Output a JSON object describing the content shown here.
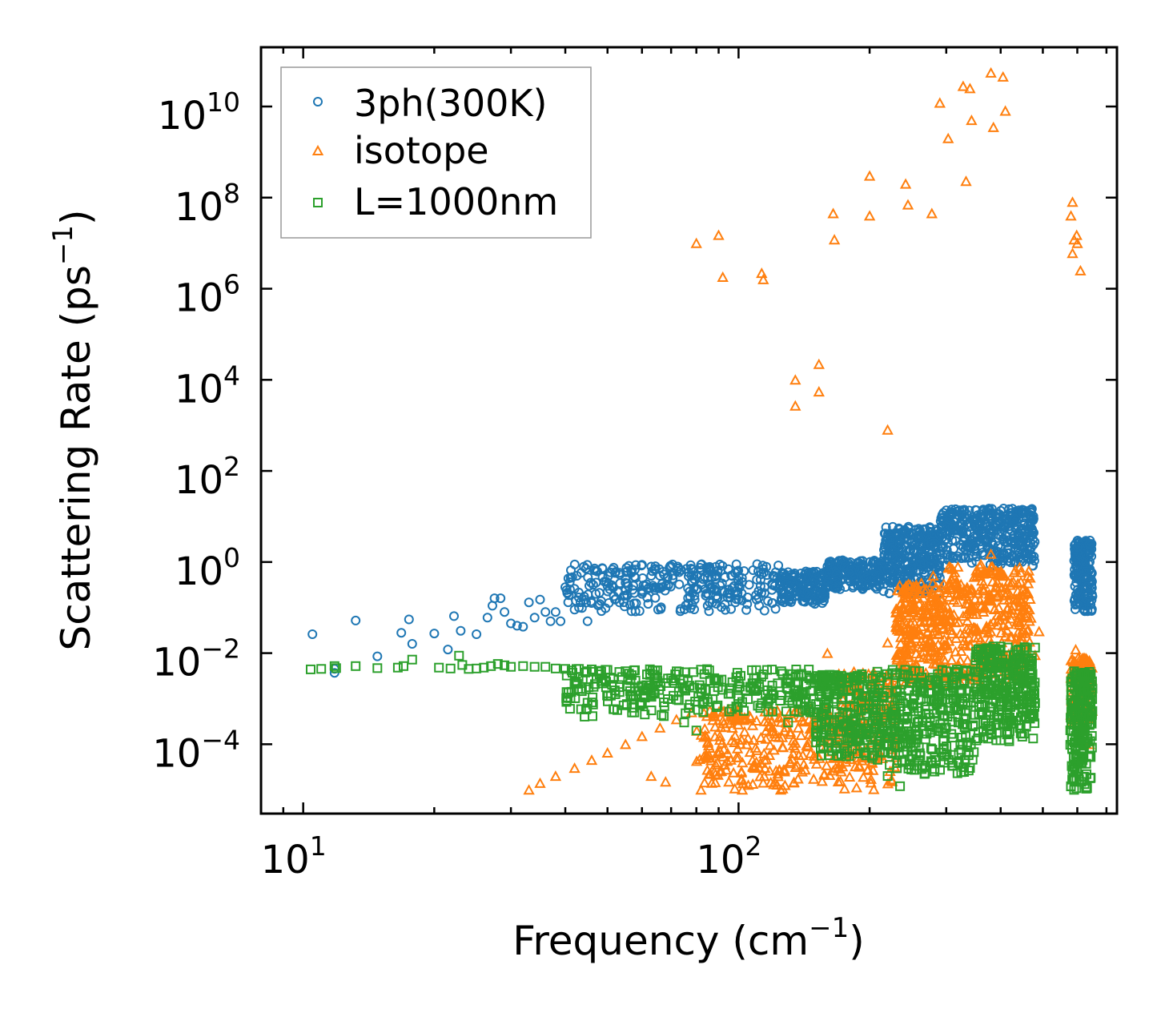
{
  "chart_data": {
    "type": "scatter",
    "title": "",
    "xlabel": "Frequency (cm⁻¹)",
    "xlabel_base": "Frequency (cm",
    "xlabel_sup": "−1",
    "xlabel_close": ")",
    "ylabel": "Scattering Rate (ps⁻¹)",
    "ylabel_base": "Scattering Rate (ps",
    "ylabel_sup": "−1",
    "ylabel_close": ")",
    "xscale": "log",
    "yscale": "log",
    "xlim": [
      8.0,
      740.0
    ],
    "ylim": [
      3e-06,
      200000000000.0
    ],
    "x_ticks": [
      {
        "value": 10,
        "base": "10",
        "exp": "1"
      },
      {
        "value": 100,
        "base": "10",
        "exp": "2"
      }
    ],
    "y_ticks": [
      {
        "value": 0.0001,
        "base": "10",
        "exp": "−4"
      },
      {
        "value": 0.01,
        "base": "10",
        "exp": "−2"
      },
      {
        "value": 1.0,
        "base": "10",
        "exp": "0"
      },
      {
        "value": 100.0,
        "base": "10",
        "exp": "2"
      },
      {
        "value": 10000.0,
        "base": "10",
        "exp": "4"
      },
      {
        "value": 1000000.0,
        "base": "10",
        "exp": "6"
      },
      {
        "value": 100000000.0,
        "base": "10",
        "exp": "8"
      },
      {
        "value": 10000000000.0,
        "base": "10",
        "exp": "10"
      }
    ],
    "legend": "top-left",
    "series": [
      {
        "name": "3ph(300K)",
        "marker": "circle",
        "color": "#1f77b4",
        "points": [
          [
            10.5,
            0.026
          ],
          [
            11.8,
            0.0037
          ],
          [
            11.8,
            0.0045
          ],
          [
            13.2,
            0.052
          ],
          [
            14.8,
            0.0085
          ],
          [
            16.8,
            0.028
          ],
          [
            17.5,
            0.055
          ],
          [
            17.8,
            0.016
          ],
          [
            20.0,
            0.027
          ],
          [
            21.5,
            0.012
          ],
          [
            22.2,
            0.065
          ],
          [
            23.0,
            0.031
          ],
          [
            25.0,
            0.026
          ],
          [
            26.5,
            0.06
          ],
          [
            27.2,
            0.11
          ],
          [
            27.5,
            0.16
          ],
          [
            28.4,
            0.16
          ],
          [
            29.0,
            0.08
          ],
          [
            30.0,
            0.045
          ],
          [
            31.0,
            0.04
          ],
          [
            32.0,
            0.038
          ],
          [
            33.0,
            0.13
          ],
          [
            34.0,
            0.06
          ],
          [
            35.0,
            0.15
          ],
          [
            36.0,
            0.08
          ],
          [
            37.0,
            0.05
          ],
          [
            38.0,
            0.08
          ],
          [
            39.0,
            0.05
          ],
          [
            40.0,
            0.28
          ],
          [
            41.0,
            0.25
          ],
          [
            42.0,
            0.09
          ],
          [
            43.0,
            0.1
          ],
          [
            45.0,
            0.05
          ],
          [
            47.0,
            0.2
          ],
          [
            48.0,
            0.12
          ],
          [
            50.0,
            0.3
          ],
          [
            52.0,
            0.15
          ],
          [
            55.0,
            0.35
          ],
          [
            58.0,
            0.45
          ],
          [
            60.0,
            0.2
          ],
          [
            63.0,
            0.5
          ],
          [
            66.0,
            0.5
          ],
          [
            70.0,
            0.8
          ],
          [
            73.0,
            0.6
          ],
          [
            78.0,
            0.5
          ],
          [
            85.0,
            0.45
          ],
          [
            95.0,
            0.25
          ],
          [
            110.0,
            0.15
          ],
          [
            120.0,
            0.5
          ],
          [
            130.0,
            0.6
          ],
          [
            145.0,
            0.2
          ],
          [
            160.0,
            0.8
          ],
          [
            180.0,
            0.5
          ],
          [
            220.0,
            0.7
          ],
          [
            260.0,
            2.5
          ],
          [
            300.0,
            6.0
          ],
          [
            350.0,
            8.0
          ],
          [
            420.0,
            12.0
          ],
          [
            470.0,
            14.0
          ],
          [
            600.0,
            0.8
          ],
          [
            640.0,
            2.5
          ]
        ],
        "bands": [
          {
            "x_from": 40,
            "x_to": 125,
            "y_from": 0.08,
            "y_to": 0.9,
            "count": 300
          },
          {
            "x_from": 125,
            "x_to": 160,
            "y_from": 0.12,
            "y_to": 0.65,
            "count": 160
          },
          {
            "x_from": 160,
            "x_to": 215,
            "y_from": 0.25,
            "y_to": 1.1,
            "count": 200
          },
          {
            "x_from": 215,
            "x_to": 290,
            "y_from": 0.2,
            "y_to": 6.0,
            "count": 320
          },
          {
            "x_from": 290,
            "x_to": 480,
            "y_from": 0.8,
            "y_to": 15.0,
            "count": 380
          },
          {
            "x_from": 590,
            "x_to": 650,
            "y_from": 0.08,
            "y_to": 3.0,
            "count": 180
          }
        ]
      },
      {
        "name": "isotope",
        "marker": "triangle",
        "color": "#ff7f0e",
        "points": [
          [
            80.0,
            10000000.0
          ],
          [
            90.0,
            15000000.0
          ],
          [
            92.0,
            1800000.0
          ],
          [
            113.0,
            2200000.0
          ],
          [
            114.0,
            1600000.0
          ],
          [
            135.0,
            2700.0
          ],
          [
            135.0,
            10000.0
          ],
          [
            153.0,
            22000.0
          ],
          [
            153.0,
            5500.0
          ],
          [
            165.0,
            45000000.0
          ],
          [
            166.0,
            12000000.0
          ],
          [
            200.0,
            300000000.0
          ],
          [
            200.0,
            40000000.0
          ],
          [
            220.0,
            800.0
          ],
          [
            242.0,
            200000000.0
          ],
          [
            245.0,
            70000000.0
          ],
          [
            278.0,
            45000000.0
          ],
          [
            290.0,
            12000000000.0
          ],
          [
            303.0,
            2000000000.0
          ],
          [
            328.0,
            28000000000.0
          ],
          [
            340.0,
            25000000000.0
          ],
          [
            343.0,
            5000000000.0
          ],
          [
            333.0,
            230000000.0
          ],
          [
            380.0,
            55000000000.0
          ],
          [
            385.0,
            3500000000.0
          ],
          [
            405.0,
            45000000000.0
          ],
          [
            410.0,
            8000000000.0
          ],
          [
            580.0,
            40000000.0
          ],
          [
            585.0,
            80000000.0
          ],
          [
            590.0,
            12000000.0
          ],
          [
            585.0,
            6000000.0
          ],
          [
            598.0,
            15000000.0
          ],
          [
            600.0,
            10000000.0
          ],
          [
            610.0,
            2500000.0
          ],
          [
            33.0,
            1e-05
          ],
          [
            35.0,
            1.4e-05
          ],
          [
            38.0,
            2e-05
          ],
          [
            42.0,
            3e-05
          ],
          [
            46.0,
            4.5e-05
          ],
          [
            50.0,
            6.5e-05
          ],
          [
            55.0,
            0.0001
          ],
          [
            60.0,
            0.00015
          ],
          [
            66.0,
            0.00023
          ],
          [
            72.0,
            0.00035
          ],
          [
            78.0,
            0.0005
          ],
          [
            63.0,
            2e-05
          ],
          [
            68.0,
            1.5e-05
          ],
          [
            82.0,
            1e-05
          ],
          [
            88.0,
            2.5e-05
          ],
          [
            95.0,
            1.5e-05
          ],
          [
            102.0,
            1e-05
          ],
          [
            115.0,
            3e-05
          ],
          [
            125.0,
            1e-05
          ],
          [
            140.0,
            2.5e-05
          ],
          [
            160.0,
            0.01
          ],
          [
            170.0,
            0.0035
          ],
          [
            220.0,
            0.017
          ],
          [
            235.0,
            0.009
          ],
          [
            250.0,
            0.09
          ],
          [
            255.0,
            0.25
          ],
          [
            260.0,
            0.12
          ],
          [
            280.0,
            0.5
          ],
          [
            300.0,
            0.08
          ],
          [
            330.0,
            0.25
          ],
          [
            350.0,
            0.1
          ],
          [
            360.0,
            0.9
          ],
          [
            380.0,
            1.5
          ],
          [
            400.0,
            0.5
          ],
          [
            430.0,
            0.6
          ],
          [
            460.0,
            0.1
          ],
          [
            490.0,
            0.03
          ],
          [
            480.0,
            0.009
          ],
          [
            595.0,
            0.012
          ],
          [
            610.0,
            0.004
          ],
          [
            640.0,
            0.0001
          ]
        ],
        "bands": [
          {
            "x_from": 80,
            "x_to": 170,
            "y_from": 1e-05,
            "y_to": 0.0006,
            "count": 260
          },
          {
            "x_from": 170,
            "x_to": 230,
            "y_from": 1e-05,
            "y_to": 0.004,
            "count": 180
          },
          {
            "x_from": 230,
            "x_to": 300,
            "y_from": 0.002,
            "y_to": 0.35,
            "count": 260
          },
          {
            "x_from": 300,
            "x_to": 470,
            "y_from": 0.002,
            "y_to": 0.8,
            "count": 320
          },
          {
            "x_from": 580,
            "x_to": 650,
            "y_from": 0.0003,
            "y_to": 0.008,
            "count": 120
          }
        ]
      },
      {
        "name": "L=1000nm",
        "marker": "square",
        "color": "#2ca02c",
        "points": [
          [
            10.4,
            0.0044
          ],
          [
            11.0,
            0.0045
          ],
          [
            11.9,
            0.0047
          ],
          [
            11.8,
            0.0052
          ],
          [
            13.2,
            0.0052
          ],
          [
            14.8,
            0.0047
          ],
          [
            16.5,
            0.0048
          ],
          [
            17.0,
            0.0052
          ],
          [
            17.8,
            0.0072
          ],
          [
            20.5,
            0.0048
          ],
          [
            21.8,
            0.0046
          ],
          [
            22.8,
            0.0088
          ],
          [
            23.2,
            0.0055
          ],
          [
            24.0,
            0.0045
          ],
          [
            25.0,
            0.0046
          ],
          [
            26.0,
            0.0048
          ],
          [
            27.0,
            0.0052
          ],
          [
            28.0,
            0.0058
          ],
          [
            29.0,
            0.0054
          ],
          [
            30.0,
            0.005
          ],
          [
            32.0,
            0.0052
          ],
          [
            34.0,
            0.005
          ],
          [
            36.0,
            0.005
          ],
          [
            38.0,
            0.0046
          ],
          [
            40.0,
            0.0045
          ],
          [
            43.0,
            0.0045
          ],
          [
            46.0,
            0.0044
          ],
          [
            50.0,
            0.0043
          ],
          [
            55.0,
            0.004
          ],
          [
            58.0,
            0.0012
          ],
          [
            60.0,
            0.0008
          ],
          [
            65.0,
            0.003
          ],
          [
            70.0,
            0.0028
          ],
          [
            75.0,
            0.0003
          ],
          [
            80.0,
            0.0002
          ],
          [
            90.0,
            0.0025
          ],
          [
            100.0,
            0.0024
          ],
          [
            110.0,
            0.0022
          ],
          [
            120.0,
            0.0012
          ],
          [
            130.0,
            0.0003
          ],
          [
            145.0,
            0.0006
          ],
          [
            155.0,
            0.0004
          ],
          [
            168.0,
            0.003
          ],
          [
            185.0,
            0.003
          ],
          [
            210.0,
            0.0001
          ],
          [
            220.0,
            2e-05
          ],
          [
            235.0,
            1.2e-05
          ],
          [
            260.0,
            0.004
          ],
          [
            300.0,
            0.004
          ],
          [
            320.0,
            0.0003
          ],
          [
            350.0,
            0.004
          ],
          [
            380.0,
            0.012
          ],
          [
            400.0,
            0.014
          ],
          [
            440.0,
            0.006
          ],
          [
            470.0,
            0.0035
          ],
          [
            480.0,
            0.0008
          ],
          [
            580.0,
            1.2e-05
          ],
          [
            590.0,
            1e-05
          ],
          [
            610.0,
            0.0035
          ],
          [
            640.0,
            0.0004
          ]
        ],
        "bands": [
          {
            "x_from": 40,
            "x_to": 150,
            "y_from": 0.0004,
            "y_to": 0.0045,
            "count": 280
          },
          {
            "x_from": 150,
            "x_to": 200,
            "y_from": 5e-05,
            "y_to": 0.0035,
            "count": 200
          },
          {
            "x_from": 200,
            "x_to": 350,
            "y_from": 2e-05,
            "y_to": 0.0045,
            "count": 360
          },
          {
            "x_from": 350,
            "x_to": 480,
            "y_from": 0.0001,
            "y_to": 0.014,
            "count": 300
          },
          {
            "x_from": 578,
            "x_to": 650,
            "y_from": 1e-05,
            "y_to": 0.004,
            "count": 200
          }
        ]
      }
    ]
  }
}
